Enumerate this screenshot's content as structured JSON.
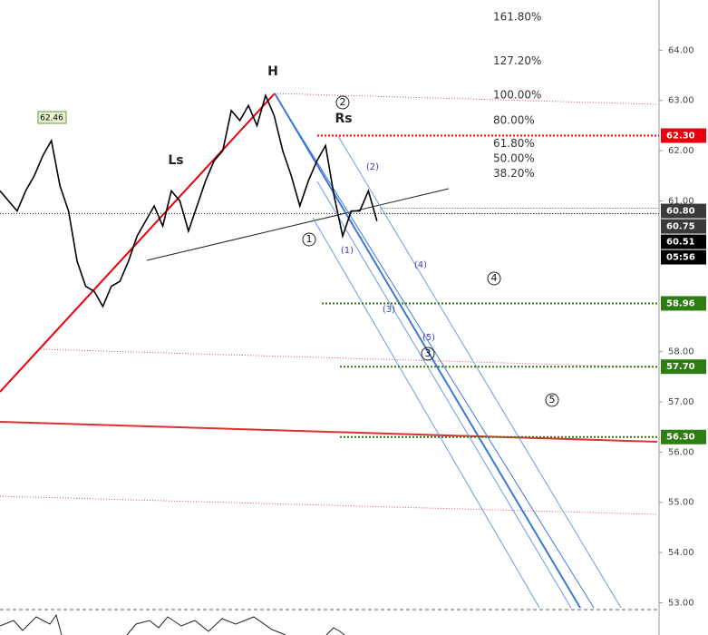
{
  "chart_data": {
    "type": "line",
    "color": "#000000",
    "values": [
      61.2,
      61.0,
      60.8,
      61.2,
      61.5,
      61.9,
      62.2,
      61.3,
      60.8,
      59.8,
      59.3,
      59.2,
      58.9,
      59.3,
      59.4,
      59.8,
      60.3,
      60.6,
      60.9,
      60.5,
      61.2,
      61.0,
      60.4,
      60.9,
      61.4,
      61.8,
      62.0,
      62.8,
      62.6,
      62.9,
      62.5,
      63.1,
      62.7,
      62.0,
      61.5,
      60.9,
      61.4,
      61.8,
      62.1,
      61.1,
      60.3,
      60.8,
      60.8,
      61.2,
      60.6
    ],
    "ylim": [
      52.9,
      65.0
    ],
    "yticks": [
      {
        "value": 53,
        "label": "53.00"
      },
      {
        "value": 54,
        "label": "54.00"
      },
      {
        "value": 55,
        "label": "55.00"
      },
      {
        "value": 56,
        "label": "56.00"
      },
      {
        "value": 57,
        "label": "57.00"
      },
      {
        "value": 58,
        "label": "58.00"
      },
      {
        "value": 61,
        "label": "61.00"
      },
      {
        "value": 62,
        "label": "62.00"
      },
      {
        "value": 63,
        "label": "63.00"
      },
      {
        "value": 64,
        "label": "64.00"
      }
    ],
    "grid": false,
    "levels": [
      {
        "value": 62.3,
        "label": "62.30",
        "color": "#e8000b"
      },
      {
        "value": 58.96,
        "label": "58.96",
        "color": "#2e7d12"
      },
      {
        "value": 57.7,
        "label": "57.70",
        "color": "#2e7d12"
      },
      {
        "value": 56.3,
        "label": "56.30",
        "color": "#2e7d12"
      }
    ],
    "price_tags": [
      {
        "value": 60.8,
        "label": "60.80",
        "color": "#3a3a3a"
      },
      {
        "value": 60.75,
        "label": "60.75",
        "color": "#3a3a3a"
      },
      {
        "value": 60.51,
        "label": "60.51",
        "color": "#000000"
      }
    ],
    "countdown": "05:56",
    "fib": [
      {
        "value": 161.8,
        "label": "161.80%"
      },
      {
        "value": 127.2,
        "label": "127.20%"
      },
      {
        "value": 100,
        "label": "100.00%"
      },
      {
        "value": 80,
        "label": "80.00%"
      },
      {
        "value": 61.8,
        "label": "61.80%"
      },
      {
        "value": 50,
        "label": "50.00%"
      },
      {
        "value": 38.2,
        "label": "38.20%"
      }
    ],
    "peak_label": {
      "value": 62.46,
      "label": "62.46"
    },
    "annotations": [
      "H",
      "Ls",
      "Rs"
    ],
    "wave_labels": [
      "1",
      "2",
      "3",
      "4",
      "5"
    ],
    "sub_wave_labels": [
      "(1)",
      "(2)",
      "(3)",
      "(4)",
      "(5)"
    ]
  }
}
